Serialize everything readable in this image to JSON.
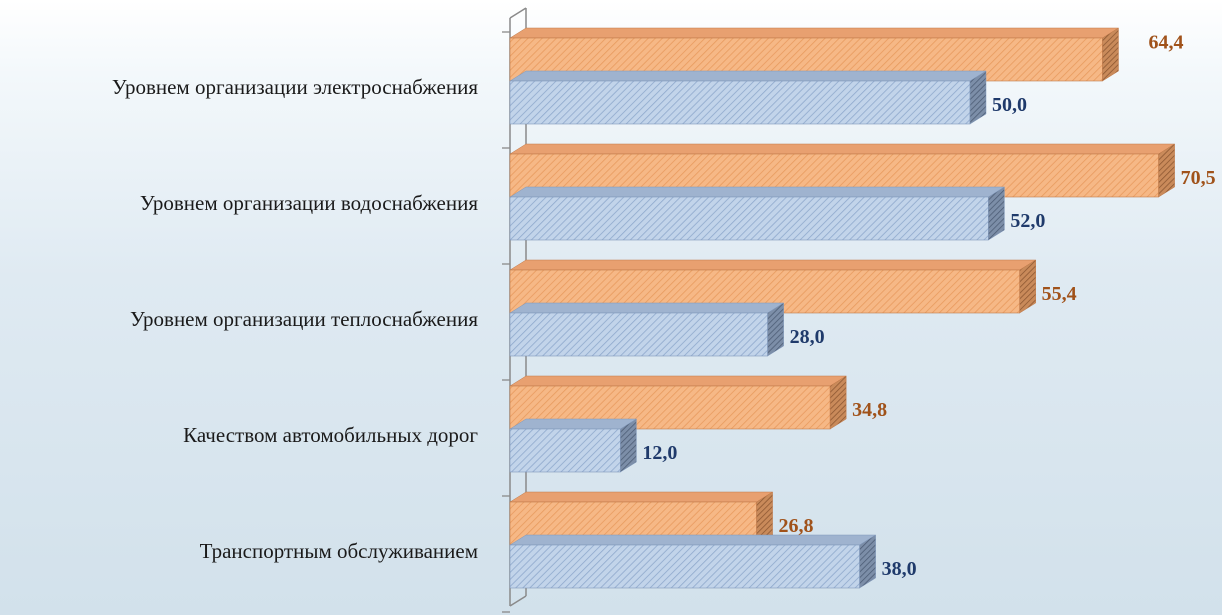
{
  "chart_data": {
    "type": "bar",
    "orientation": "horizontal",
    "categories": [
      "Уровнем организации электроснабжения",
      "Уровнем организации водоснабжения",
      "Уровнем организации теплоснабжения",
      "Качеством автомобильных дорог",
      "Транспортным обслуживанием"
    ],
    "series": [
      {
        "values": [
          64.4,
          70.5,
          55.4,
          34.8,
          26.8
        ],
        "labels": [
          "64,4",
          "70,5",
          "55,4",
          "34,8",
          "26,8"
        ],
        "color": "#f6b886",
        "label_color": "#a0521a"
      },
      {
        "values": [
          50.0,
          52.0,
          28.0,
          12.0,
          38.0
        ],
        "labels": [
          "50,0",
          "52,0",
          "28,0",
          "12,0",
          "38,0"
        ],
        "color": "#b3c9e3",
        "label_color": "#1f3a6b"
      }
    ],
    "title": "",
    "xlabel": "",
    "ylabel": "",
    "xlim": [
      0,
      75
    ],
    "grid": false,
    "legend": "none",
    "style": "3d-hatched"
  }
}
